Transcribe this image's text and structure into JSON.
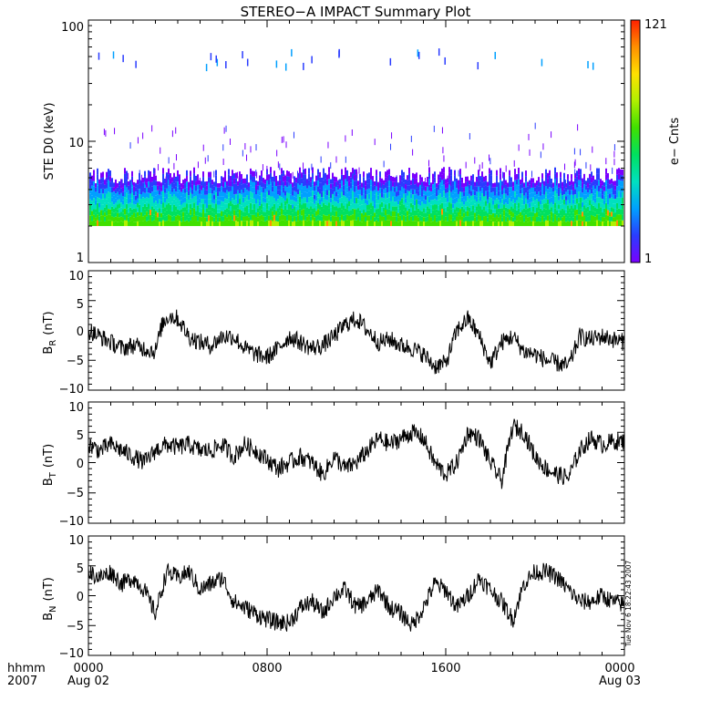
{
  "title": "STEREO−A IMPACT Summary Plot",
  "timestamp": "Tue Nov  6 18:22:43 2007",
  "time_axis": {
    "corner_top": "hhmm",
    "corner_bottom": "2007",
    "ticks": [
      {
        "top": "0000",
        "bottom": "Aug 02",
        "hour": 0
      },
      {
        "top": "0800",
        "bottom": "",
        "hour": 8
      },
      {
        "top": "1600",
        "bottom": "",
        "hour": 16
      },
      {
        "top": "0000",
        "bottom": "Aug 03",
        "hour": 24
      }
    ],
    "range_hours": [
      0,
      24
    ]
  },
  "colorbar": {
    "max_label": "121",
    "min_label": "1",
    "label": "e− Cnts",
    "colors": [
      "#7a00ff",
      "#2a3cff",
      "#00a0ff",
      "#00e0c0",
      "#00e060",
      "#40e000",
      "#b0f000",
      "#ffe000",
      "#ff9000",
      "#ff2000"
    ]
  },
  "chart_data": [
    {
      "type": "heatmap",
      "name": "spectrogram",
      "ylabel": "STE D0 (keV)",
      "yscale": "log",
      "ylim": [
        1,
        100
      ],
      "yticks": [
        "1",
        "10",
        "100"
      ],
      "xlim": [
        0,
        24
      ],
      "band_keV": [
        2,
        4.5
      ],
      "crange": [
        1,
        121
      ],
      "color_scale": [
        "#7a00ff",
        "#2a3cff",
        "#00a0ff",
        "#00e0c0",
        "#00e060",
        "#40e000",
        "#b0f000",
        "#ffe000",
        "#ff9000",
        "#ff2000"
      ]
    },
    {
      "type": "line",
      "name": "BR",
      "ylabel_main": "B",
      "ylabel_sub": "R",
      "ylabel_units": "(nT)",
      "ylim": [
        -10,
        10
      ],
      "yticks": [
        "10",
        "5",
        "0",
        "−5",
        "−10"
      ],
      "x": [
        0,
        0.5,
        1,
        1.5,
        2,
        2.5,
        3,
        3.3,
        3.6,
        4,
        4.5,
        5,
        5.5,
        6,
        6.5,
        7,
        7.5,
        8,
        8.5,
        9,
        9.5,
        10,
        10.5,
        11,
        11.5,
        12,
        12.5,
        13,
        13.5,
        14,
        14.5,
        15,
        15.5,
        16,
        16.5,
        17,
        17.5,
        18,
        18.5,
        19,
        19.5,
        20,
        20.5,
        21,
        21.5,
        22,
        22.5,
        23,
        23.5,
        24
      ],
      "y": [
        0,
        -1,
        -2,
        -3,
        -2.5,
        -3,
        -3.5,
        1,
        2.5,
        2,
        -1,
        -2,
        -2.5,
        -1,
        -1,
        -3,
        -4,
        -4.5,
        -3,
        -1,
        -2,
        -3,
        -2.5,
        -1,
        1,
        2,
        0,
        -2,
        -1.5,
        -2.5,
        -3,
        -4,
        -6,
        -5.5,
        0,
        2,
        -1,
        -5.5,
        -2,
        -1,
        -3.5,
        -4,
        -5,
        -5.5,
        -6,
        -1,
        -1.5,
        -1,
        -1.5,
        -2
      ]
    },
    {
      "type": "line",
      "name": "BT",
      "ylabel_main": "B",
      "ylabel_sub": "T",
      "ylabel_units": "(nT)",
      "ylim": [
        -10,
        10
      ],
      "yticks": [
        "10",
        "5",
        "0",
        "−5",
        "−10"
      ],
      "x": [
        0,
        0.5,
        1,
        1.5,
        2,
        2.5,
        3,
        3.5,
        4,
        4.5,
        5,
        5.5,
        6,
        6.5,
        7,
        7.5,
        8,
        8.5,
        9,
        9.5,
        10,
        10.5,
        11,
        11.5,
        12,
        12.5,
        13,
        13.5,
        14,
        14.5,
        15,
        15.5,
        16,
        16.5,
        17,
        17.5,
        18,
        18.5,
        19,
        19.5,
        20,
        20.5,
        21,
        21.5,
        22,
        22.5,
        23,
        23.5,
        24
      ],
      "y": [
        3,
        2,
        3,
        2,
        1,
        0,
        2,
        3,
        2.5,
        3,
        2,
        2,
        3,
        1,
        3,
        2,
        0.5,
        -1,
        0,
        1,
        0,
        -2,
        1,
        -1,
        0,
        2,
        4,
        3,
        4,
        5,
        4,
        0,
        -2,
        0,
        5,
        4,
        0,
        -3,
        6,
        5,
        1,
        -1,
        -2,
        -2.5,
        2,
        4,
        3,
        3.5,
        3.5
      ]
    },
    {
      "type": "line",
      "name": "BN",
      "ylabel_main": "B",
      "ylabel_sub": "N",
      "ylabel_units": "(nT)",
      "ylim": [
        -10,
        10
      ],
      "yticks": [
        "10",
        "5",
        "0",
        "−5",
        "−10"
      ],
      "x": [
        0,
        0.5,
        1,
        1.5,
        2,
        2.5,
        3,
        3.5,
        4,
        4.5,
        5,
        5.5,
        6,
        6.5,
        7,
        7.5,
        8,
        8.5,
        9,
        9.5,
        10,
        10.5,
        11,
        11.5,
        12,
        12.5,
        13,
        13.5,
        14,
        14.5,
        15,
        15.5,
        16,
        16.5,
        17,
        17.5,
        18,
        18.5,
        19,
        19.5,
        20,
        20.5,
        21,
        21.5,
        22,
        22.5,
        23,
        23.5,
        24
      ],
      "y": [
        4,
        3,
        4,
        2,
        3,
        1,
        -3,
        4,
        3,
        4,
        1,
        2,
        3,
        -1,
        -2,
        -3,
        -4,
        -4.5,
        -4.5,
        -2,
        -1,
        -3,
        0,
        1,
        -2,
        -1,
        1,
        -2,
        -3,
        -5,
        -2,
        2,
        1,
        -2,
        0,
        3,
        1,
        -1,
        -4,
        2,
        4,
        4,
        3,
        1,
        -1,
        -1,
        0,
        -1,
        -1.5
      ]
    }
  ]
}
